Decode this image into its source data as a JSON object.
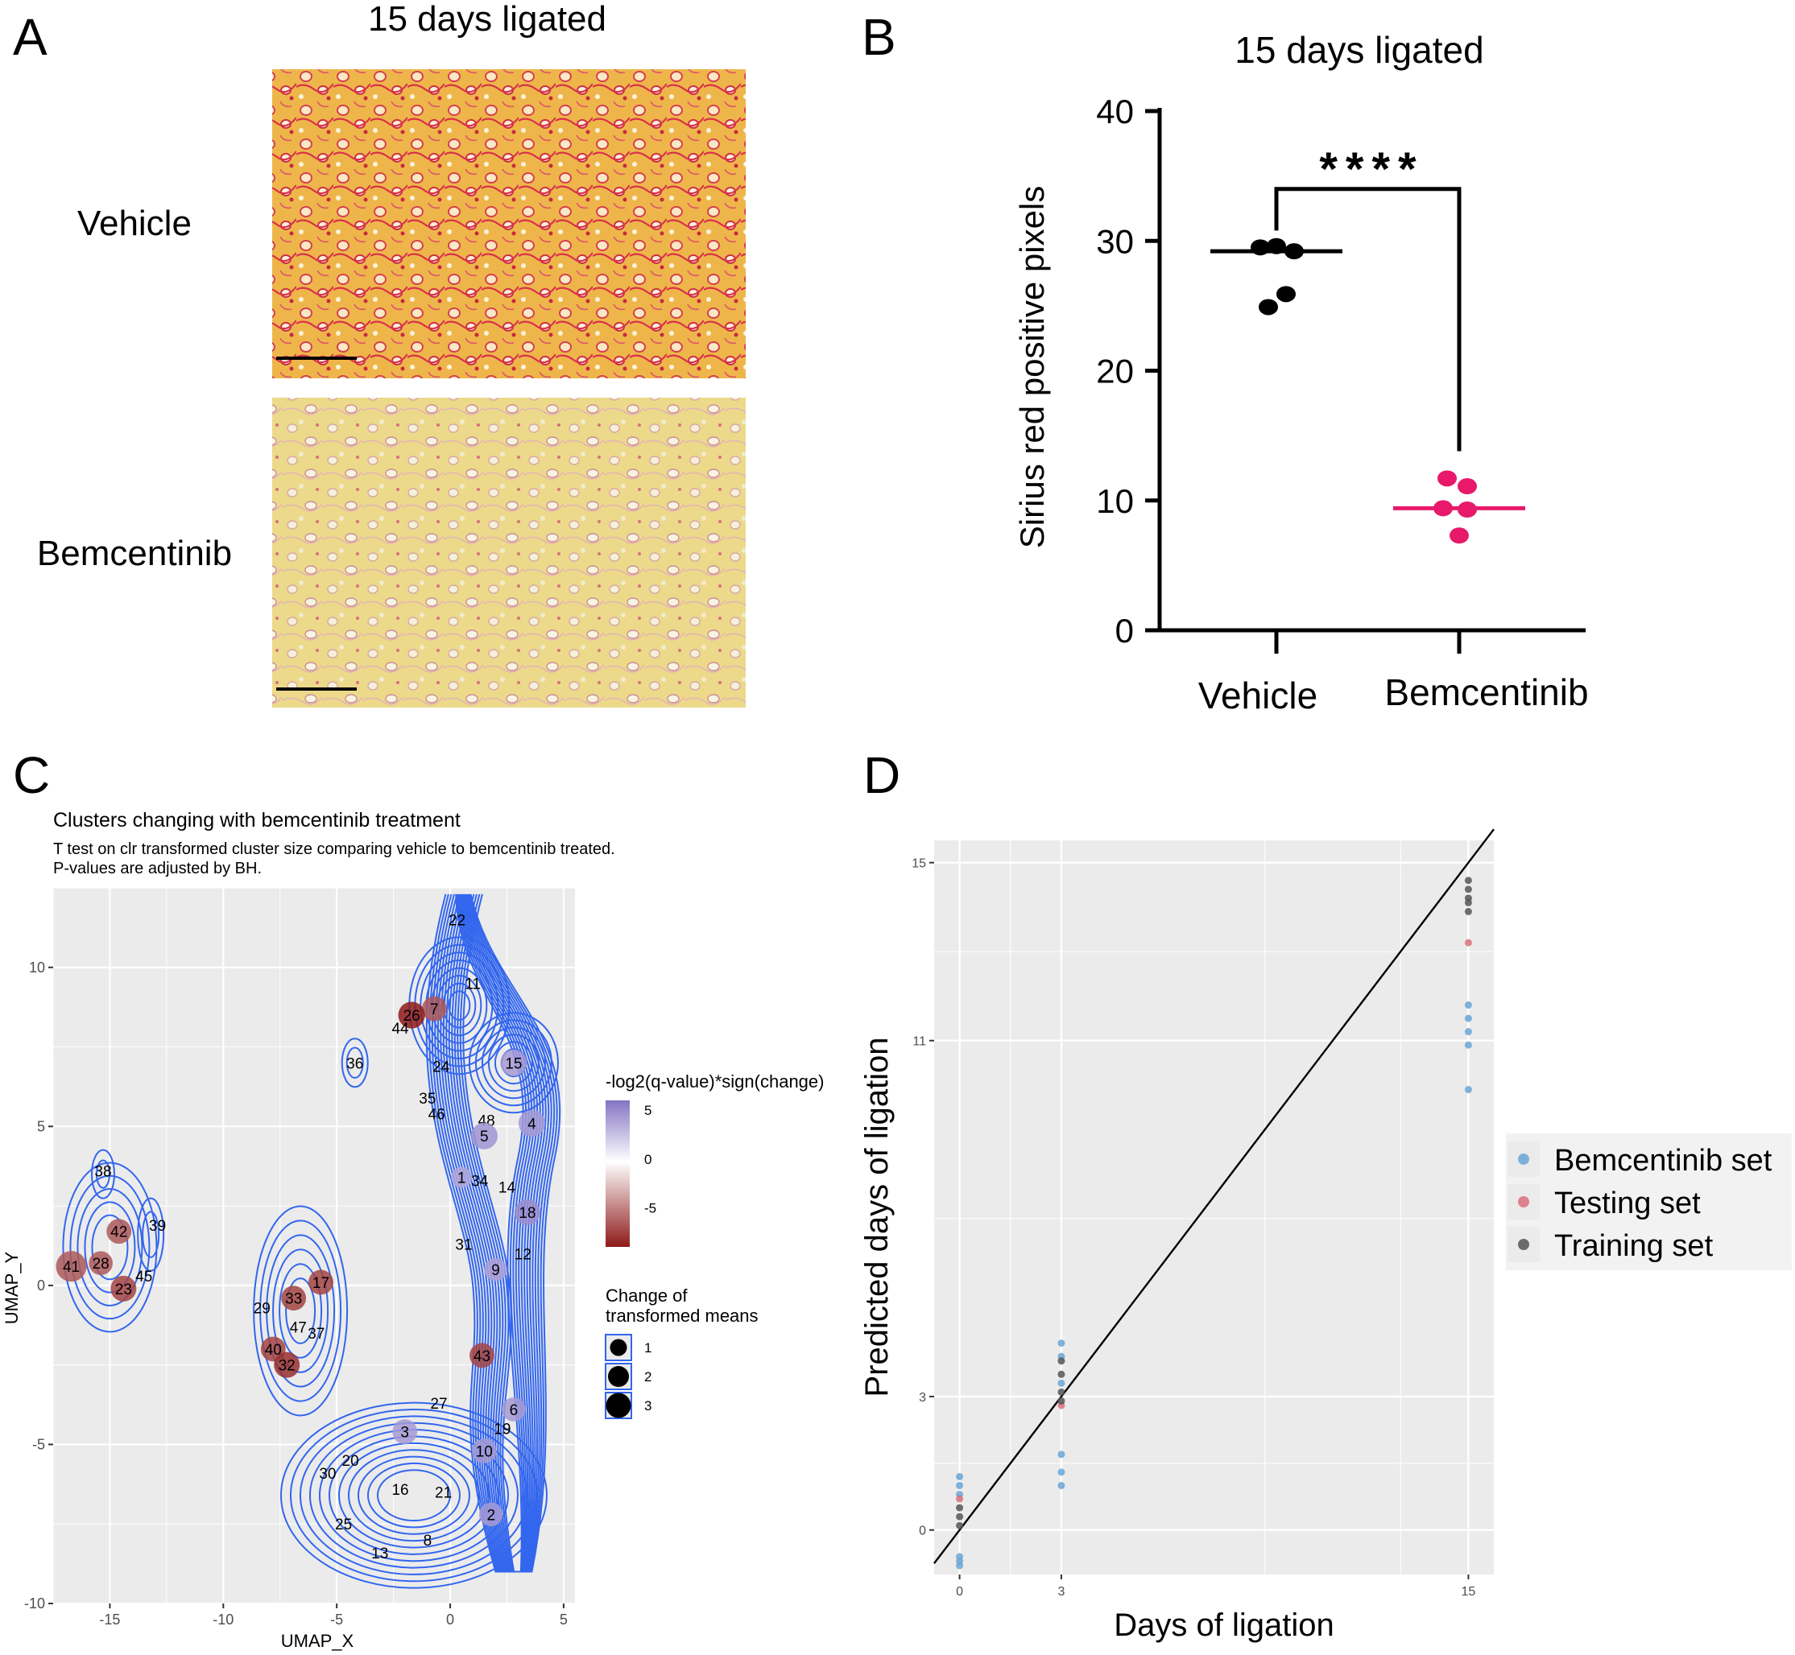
{
  "colors": {
    "vehicle": "#000000",
    "bemcentinib": "#e8196b",
    "contour": "#3366ee",
    "panel_bg": "#ebebeb",
    "grid": "#ffffff",
    "bemcentinib_set": "#6aa6d6",
    "testing_set": "#d9707a",
    "training_set": "#555555",
    "gradient_high": "#8474c4",
    "gradient_low": "#8e1a1a"
  },
  "panel_a": {
    "letter": "A",
    "title": "15 days ligated",
    "row_labels": [
      "Vehicle",
      "Bemcentinib"
    ]
  },
  "chart_data": [
    {
      "panel": "B",
      "letter": "B",
      "type": "scatter",
      "title": "15 days ligated",
      "xlabel": "",
      "ylabel": "Sirius red positive pixels",
      "categories": [
        "Vehicle",
        "Bemcentinib"
      ],
      "ylim": [
        0,
        40
      ],
      "yticks": [
        0,
        10,
        20,
        30,
        40
      ],
      "series": [
        {
          "name": "Vehicle",
          "points": [
            [
              -0.2,
              29.5
            ],
            [
              0.0,
              29.6
            ],
            [
              0.22,
              29.2
            ],
            [
              -0.1,
              24.9
            ],
            [
              0.12,
              25.9
            ]
          ],
          "mean": 29.2
        },
        {
          "name": "Bemcentinib",
          "points": [
            [
              -0.15,
              11.7
            ],
            [
              0.1,
              11.1
            ],
            [
              -0.2,
              9.4
            ],
            [
              0.1,
              9.3
            ],
            [
              0.0,
              7.3
            ]
          ],
          "mean": 9.4
        }
      ],
      "annotation": "****"
    },
    {
      "panel": "C",
      "letter": "C",
      "type": "scatter",
      "title": "Clusters changing with bemcentinib treatment",
      "subtitle": "T test on clr transformed cluster size comparing vehicle to bemcentinib treated.",
      "subtitle2": "P-values are adjusted by BH.",
      "xlabel": "UMAP_X",
      "ylabel": "UMAP_Y",
      "xlim": [
        -17.5,
        5.5
      ],
      "ylim": [
        -10,
        12.5
      ],
      "xticks": [
        -15,
        -10,
        -5,
        0,
        5
      ],
      "yticks": [
        -10,
        -5,
        0,
        5,
        10
      ],
      "legend_color_title": "-log2(q-value)*sign(change)",
      "legend_color_ticks": [
        5,
        0,
        -5
      ],
      "legend_size_title": [
        "Change of",
        "transformed means"
      ],
      "legend_size_values": [
        1,
        2,
        3
      ],
      "clusters": [
        {
          "id": "22",
          "x": 0.3,
          "y": 11.5,
          "v": 0,
          "s": 0
        },
        {
          "id": "11",
          "x": 1.0,
          "y": 9.5,
          "v": 0,
          "s": 0
        },
        {
          "id": "7",
          "x": -0.7,
          "y": 8.7,
          "v": -3,
          "s": 1.4
        },
        {
          "id": "26",
          "x": -1.7,
          "y": 8.5,
          "v": -7,
          "s": 1.6
        },
        {
          "id": "44",
          "x": -2.2,
          "y": 8.1,
          "v": 0,
          "s": 0
        },
        {
          "id": "36",
          "x": -4.2,
          "y": 7.0,
          "v": 0,
          "s": 0
        },
        {
          "id": "24",
          "x": -0.4,
          "y": 6.9,
          "v": 0,
          "s": 0
        },
        {
          "id": "15",
          "x": 2.8,
          "y": 7.0,
          "v": 3,
          "s": 1.6
        },
        {
          "id": "35",
          "x": -1.0,
          "y": 5.9,
          "v": 0,
          "s": 0
        },
        {
          "id": "46",
          "x": -0.6,
          "y": 5.4,
          "v": 0,
          "s": 0
        },
        {
          "id": "48",
          "x": 1.6,
          "y": 5.2,
          "v": 0,
          "s": 0
        },
        {
          "id": "4",
          "x": 3.6,
          "y": 5.1,
          "v": 3,
          "s": 1.6
        },
        {
          "id": "5",
          "x": 1.5,
          "y": 4.7,
          "v": 3.5,
          "s": 1.6
        },
        {
          "id": "1",
          "x": 0.5,
          "y": 3.4,
          "v": 2,
          "s": 1.0
        },
        {
          "id": "34",
          "x": 1.3,
          "y": 3.3,
          "v": 0,
          "s": 0
        },
        {
          "id": "14",
          "x": 2.5,
          "y": 3.1,
          "v": 0,
          "s": 0
        },
        {
          "id": "18",
          "x": 3.4,
          "y": 2.3,
          "v": 4,
          "s": 1.5
        },
        {
          "id": "38",
          "x": -15.3,
          "y": 3.6,
          "v": 0,
          "s": 0
        },
        {
          "id": "42",
          "x": -14.6,
          "y": 1.7,
          "v": -3,
          "s": 1.4
        },
        {
          "id": "39",
          "x": -12.9,
          "y": 1.9,
          "v": 0,
          "s": 0
        },
        {
          "id": "31",
          "x": 0.6,
          "y": 1.3,
          "v": 0,
          "s": 0
        },
        {
          "id": "12",
          "x": 3.2,
          "y": 1.0,
          "v": 0,
          "s": 0
        },
        {
          "id": "41",
          "x": -16.7,
          "y": 0.6,
          "v": -3,
          "s": 2.0
        },
        {
          "id": "28",
          "x": -15.4,
          "y": 0.7,
          "v": -3,
          "s": 1.3
        },
        {
          "id": "9",
          "x": 2.0,
          "y": 0.5,
          "v": 2.5,
          "s": 1.2
        },
        {
          "id": "45",
          "x": -13.5,
          "y": 0.3,
          "v": 0,
          "s": 0
        },
        {
          "id": "23",
          "x": -14.4,
          "y": -0.1,
          "v": -4,
          "s": 1.5
        },
        {
          "id": "17",
          "x": -5.7,
          "y": 0.1,
          "v": -4,
          "s": 1.4
        },
        {
          "id": "33",
          "x": -6.9,
          "y": -0.4,
          "v": -4,
          "s": 1.4
        },
        {
          "id": "29",
          "x": -8.3,
          "y": -0.7,
          "v": 0,
          "s": 0
        },
        {
          "id": "47",
          "x": -6.7,
          "y": -1.3,
          "v": 0,
          "s": 0
        },
        {
          "id": "37",
          "x": -5.9,
          "y": -1.5,
          "v": 0,
          "s": 0
        },
        {
          "id": "40",
          "x": -7.8,
          "y": -2.0,
          "v": -4,
          "s": 1.4
        },
        {
          "id": "43",
          "x": 1.4,
          "y": -2.2,
          "v": -4,
          "s": 1.4
        },
        {
          "id": "32",
          "x": -7.2,
          "y": -2.5,
          "v": -5,
          "s": 1.5
        },
        {
          "id": "27",
          "x": -0.5,
          "y": -3.7,
          "v": 0,
          "s": 0
        },
        {
          "id": "6",
          "x": 2.8,
          "y": -3.9,
          "v": 3,
          "s": 1.3
        },
        {
          "id": "3",
          "x": -2.0,
          "y": -4.6,
          "v": 3,
          "s": 1.4
        },
        {
          "id": "19",
          "x": 2.3,
          "y": -4.5,
          "v": 0,
          "s": 0
        },
        {
          "id": "10",
          "x": 1.5,
          "y": -5.2,
          "v": 3,
          "s": 1.4
        },
        {
          "id": "20",
          "x": -4.4,
          "y": -5.5,
          "v": 0,
          "s": 0
        },
        {
          "id": "30",
          "x": -5.4,
          "y": -5.9,
          "v": 0,
          "s": 0
        },
        {
          "id": "16",
          "x": -2.2,
          "y": -6.4,
          "v": 0,
          "s": 0
        },
        {
          "id": "21",
          "x": -0.3,
          "y": -6.5,
          "v": 0,
          "s": 0
        },
        {
          "id": "2",
          "x": 1.8,
          "y": -7.2,
          "v": 3,
          "s": 1.3
        },
        {
          "id": "25",
          "x": -4.7,
          "y": -7.5,
          "v": 0,
          "s": 0
        },
        {
          "id": "8",
          "x": -1.0,
          "y": -8.0,
          "v": 0,
          "s": 0
        },
        {
          "id": "13",
          "x": -3.1,
          "y": -8.4,
          "v": 0,
          "s": 0
        }
      ]
    },
    {
      "panel": "D",
      "letter": "D",
      "type": "scatter",
      "title": "",
      "xlabel": "Days of ligation",
      "ylabel": "Predicted days of ligation",
      "xlim": [
        -0.75,
        15.75
      ],
      "ylim": [
        -1.0,
        15.5
      ],
      "xticks": [
        0,
        3,
        15
      ],
      "yticks": [
        0,
        3,
        11,
        15
      ],
      "legend": [
        "Bemcentinib set",
        "Testing set",
        "Training set"
      ],
      "reference_line": [
        [
          -0.75,
          -0.75
        ],
        [
          15.75,
          15.75
        ]
      ],
      "series": [
        {
          "name": "Bemcentinib set",
          "points": [
            [
              0,
              1.2
            ],
            [
              0,
              1.0
            ],
            [
              0,
              0.8
            ],
            [
              0,
              -0.6
            ],
            [
              0,
              -0.7
            ],
            [
              0,
              -0.8
            ],
            [
              3,
              4.2
            ],
            [
              3,
              3.9
            ],
            [
              3,
              3.3
            ],
            [
              3,
              1.7
            ],
            [
              3,
              1.3
            ],
            [
              3,
              1.0
            ],
            [
              15,
              11.8
            ],
            [
              15,
              11.5
            ],
            [
              15,
              11.2
            ],
            [
              15,
              10.9
            ],
            [
              15,
              9.9
            ]
          ]
        },
        {
          "name": "Testing set",
          "points": [
            [
              0,
              0.7
            ],
            [
              3,
              2.8
            ],
            [
              15,
              13.2
            ]
          ]
        },
        {
          "name": "Training set",
          "points": [
            [
              0,
              0.5
            ],
            [
              0,
              0.3
            ],
            [
              0,
              0.1
            ],
            [
              3,
              3.8
            ],
            [
              3,
              3.5
            ],
            [
              3,
              3.1
            ],
            [
              3,
              2.9
            ],
            [
              15,
              14.6
            ],
            [
              15,
              14.4
            ],
            [
              15,
              14.2
            ],
            [
              15,
              14.1
            ],
            [
              15,
              13.9
            ]
          ]
        }
      ]
    }
  ]
}
